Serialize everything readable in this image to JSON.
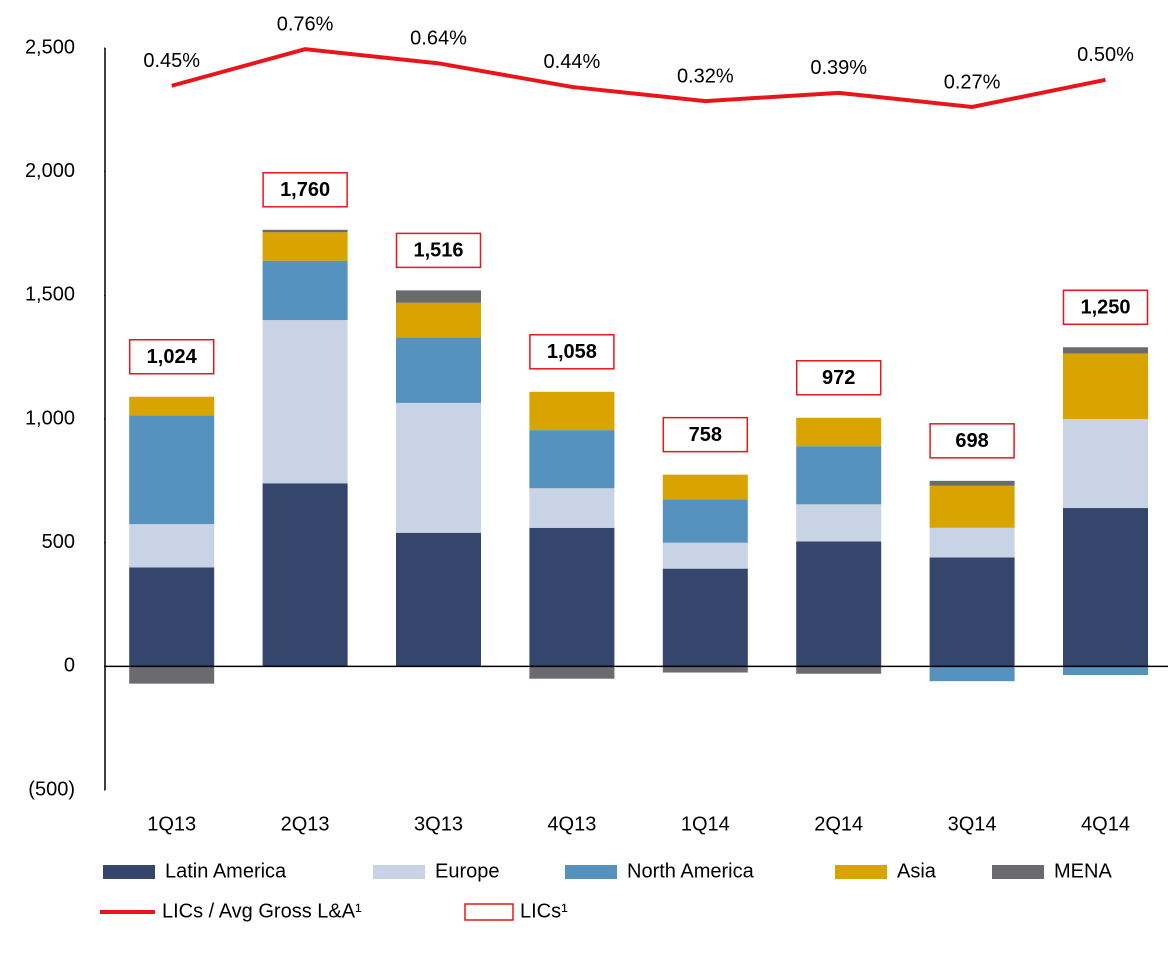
{
  "chart_data": {
    "type": "bar",
    "stacked": true,
    "categories": [
      "1Q13",
      "2Q13",
      "3Q13",
      "4Q13",
      "1Q14",
      "2Q14",
      "3Q14",
      "4Q14"
    ],
    "ylim": [
      -500,
      2500
    ],
    "yticks": [
      {
        "value": -500,
        "label": "(500)"
      },
      0,
      500,
      {
        "value": 1000,
        "label": "1,000"
      },
      {
        "value": 1500,
        "label": "1,500"
      },
      {
        "value": 2000,
        "label": "2,000"
      },
      {
        "value": 2500,
        "label": "2,500"
      }
    ],
    "y2lim": [
      -5.52,
      0.77
    ],
    "series": [
      {
        "name": "Latin America",
        "color": "#34466b",
        "type": "bar",
        "values": [
          400,
          740,
          540,
          560,
          395,
          505,
          440,
          640
        ]
      },
      {
        "name": "Europe",
        "color": "#c9d3e6",
        "type": "bar",
        "values": [
          175,
          660,
          525,
          160,
          105,
          150,
          120,
          360
        ]
      },
      {
        "name": "North America",
        "color": "#5592be",
        "type": "bar",
        "values": [
          440,
          240,
          265,
          235,
          175,
          235,
          -60,
          -35
        ]
      },
      {
        "name": "Asia",
        "color": "#d9a300",
        "type": "bar",
        "values": [
          75,
          115,
          140,
          155,
          100,
          115,
          170,
          265
        ]
      },
      {
        "name": "MENA",
        "color": "#6b6b6f",
        "type": "bar",
        "values": [
          -70,
          10,
          50,
          -50,
          -25,
          -30,
          20,
          25
        ]
      },
      {
        "name": "LICs / Avg Gross L&A¹",
        "color": "#e8161b",
        "type": "line",
        "axis": "y2",
        "values": [
          0.45,
          0.76,
          0.64,
          0.44,
          0.32,
          0.39,
          0.27,
          0.5
        ],
        "value_labels": [
          "0.45%",
          "0.76%",
          "0.64%",
          "0.44%",
          "0.32%",
          "0.39%",
          "0.27%",
          "0.50%"
        ]
      },
      {
        "name": "LICs¹",
        "color": "#e8161b",
        "type": "label-box",
        "values": [
          1024,
          1760,
          1516,
          1058,
          758,
          972,
          698,
          1250
        ],
        "value_labels": [
          "1,024",
          "1,760",
          "1,516",
          "1,058",
          "758",
          "972",
          "698",
          "1,250"
        ]
      }
    ]
  }
}
